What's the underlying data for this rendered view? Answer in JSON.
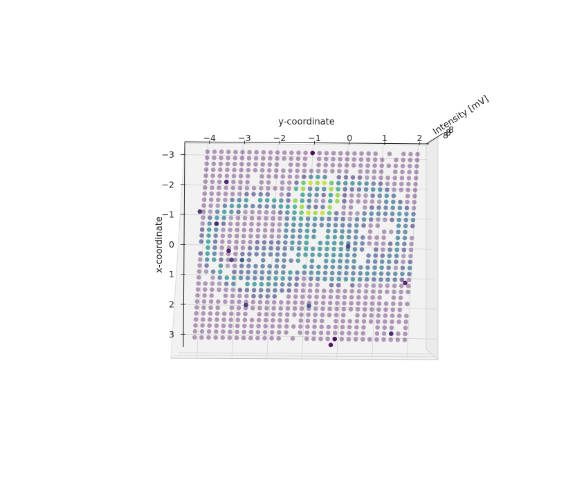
{
  "chart_data": {
    "type": "scatter",
    "projection": "3d",
    "title": "",
    "xlabel": "y-coordinate",
    "ylabel": "x-coordinate",
    "zlabel": "Intensity [mV]",
    "x_ticks": [
      "−4",
      "−3",
      "−2",
      "−1",
      "0",
      "1",
      "2"
    ],
    "y_ticks": [
      "−3",
      "−2",
      "−1",
      "0",
      "1",
      "2",
      "3"
    ],
    "z_ticks": [
      "8",
      "8",
      "8"
    ],
    "xlim": [
      -4.2,
      2.2
    ],
    "ylim": [
      -3.3,
      3.3
    ],
    "grid": true,
    "colormap": "viridis",
    "colormap_stops": [
      "#440154",
      "#3b528b",
      "#21918c",
      "#5ec962",
      "#fde725"
    ],
    "background_intensity": 0.0,
    "features": [
      {
        "kind": "ring",
        "cx": -0.8,
        "cy": -1.6,
        "r": 0.55,
        "width": 0.18,
        "value": 0.93
      },
      {
        "kind": "ring",
        "cx": -2.4,
        "cy": -0.1,
        "r": 1.4,
        "width": 0.22,
        "value": 0.5
      },
      {
        "kind": "ring",
        "cx": 0.1,
        "cy": -0.5,
        "r": 1.6,
        "width": 0.22,
        "value": 0.42
      },
      {
        "kind": "ring",
        "cx": 1.3,
        "cy": -0.1,
        "r": 1.1,
        "width": 0.2,
        "value": 0.38
      },
      {
        "kind": "disk",
        "cx": -0.4,
        "cy": 0.1,
        "r": 1.1,
        "value": 0.46
      },
      {
        "kind": "disk",
        "cx": -2.0,
        "cy": 0.8,
        "r": 1.0,
        "value": 0.32
      },
      {
        "kind": "disk",
        "cx": 0.7,
        "cy": 0.6,
        "r": 0.7,
        "value": 0.3
      }
    ],
    "outliers": [
      {
        "x": -3.4,
        "y": -2.1,
        "value": 0.08
      },
      {
        "x": -1.0,
        "y": -3.1,
        "value": 0.0
      },
      {
        "x": -4.1,
        "y": -1.1,
        "value": 0.12
      },
      {
        "x": -3.6,
        "y": -0.7,
        "value": 0.1
      },
      {
        "x": -3.2,
        "y": 0.2,
        "value": 0.05
      },
      {
        "x": -3.1,
        "y": 0.5,
        "value": 0.15
      },
      {
        "x": -2.8,
        "y": 0.5,
        "value": 0.3
      },
      {
        "x": 0.2,
        "y": 0.0,
        "value": 0.2
      },
      {
        "x": -0.8,
        "y": 2.0,
        "value": 0.25
      },
      {
        "x": 1.9,
        "y": 1.2,
        "value": 0.05
      },
      {
        "x": 0.0,
        "y": 3.1,
        "value": 0.02
      },
      {
        "x": -0.1,
        "y": 3.3,
        "value": 0.0
      },
      {
        "x": 1.6,
        "y": 2.9,
        "value": 0.1
      },
      {
        "x": -2.6,
        "y": 2.0,
        "value": 0.15
      }
    ]
  }
}
